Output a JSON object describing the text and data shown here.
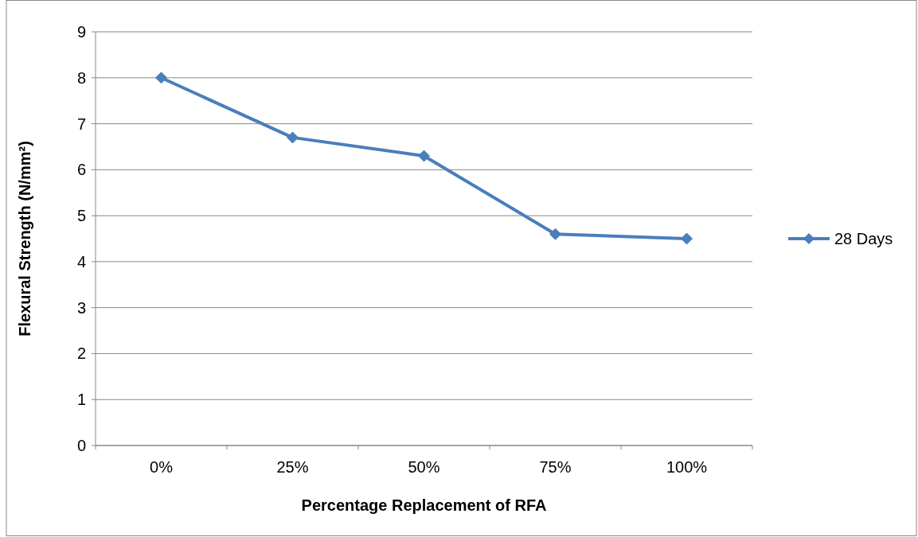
{
  "chart_data": {
    "type": "line",
    "xlabel": "Percentage Replacement of RFA",
    "ylabel": "Flexural Strength (N/mm²)",
    "categories": [
      "0%",
      "25%",
      "50%",
      "75%",
      "100%"
    ],
    "series": [
      {
        "name": "28 Days",
        "color": "#4a7ebb",
        "values": [
          8.0,
          6.7,
          6.3,
          4.6,
          4.5
        ]
      }
    ],
    "ylim": [
      0,
      9
    ],
    "yticks": [
      0,
      1,
      2,
      3,
      4,
      5,
      6,
      7,
      8,
      9
    ],
    "grid": "y",
    "legend": "right",
    "marker": "diamond",
    "line_style": "solid"
  }
}
